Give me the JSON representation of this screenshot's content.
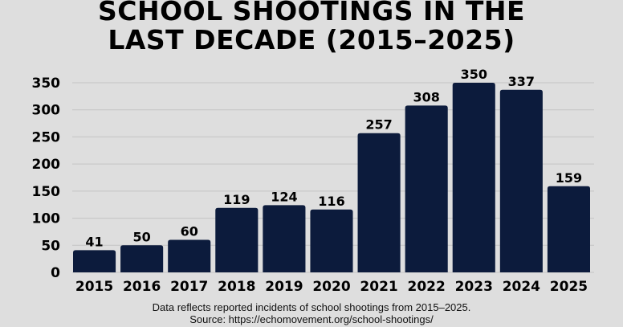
{
  "chart_data": {
    "type": "bar",
    "title_lines": [
      "SCHOOL SHOOTINGS IN THE",
      "LAST DECADE (2015–2025)"
    ],
    "categories": [
      "2015",
      "2016",
      "2017",
      "2018",
      "2019",
      "2020",
      "2021",
      "2022",
      "2023",
      "2024",
      "2025"
    ],
    "values": [
      41,
      50,
      60,
      119,
      124,
      116,
      257,
      308,
      350,
      337,
      159
    ],
    "yticks": [
      0,
      50,
      100,
      150,
      200,
      250,
      300,
      350
    ],
    "ylim": [
      0,
      350
    ],
    "grid": true,
    "xlabel": "",
    "ylabel": "",
    "bar_color": "#0c1b3c",
    "background": "#dedede",
    "footnote": "Data reflects reported incidents of school shootings from 2015–2025.",
    "source": "Source: https://echomovement.org/school-shootings/"
  }
}
